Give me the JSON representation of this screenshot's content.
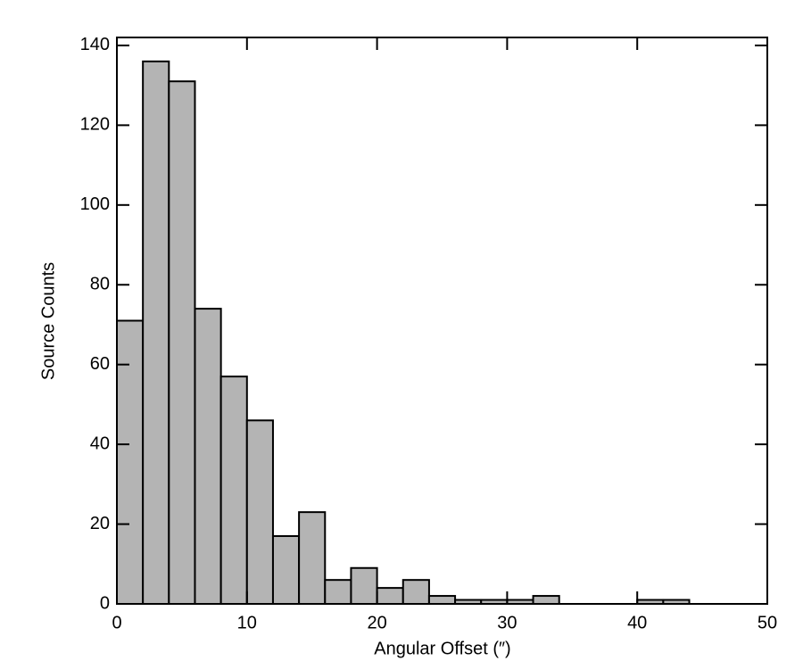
{
  "chart_data": {
    "type": "histogram",
    "xlabel": "Angular Offset (″)",
    "ylabel": "Source Counts",
    "bins": [
      0,
      2,
      4,
      6,
      8,
      10,
      12,
      14,
      16,
      18,
      20,
      22,
      24,
      26,
      28,
      30,
      32,
      34,
      36,
      38,
      40,
      42,
      44
    ],
    "counts": [
      71,
      136,
      131,
      74,
      57,
      46,
      17,
      23,
      6,
      9,
      4,
      6,
      2,
      1,
      1,
      1,
      2,
      0,
      0,
      0,
      1,
      1
    ],
    "color": "#b4b4b4",
    "xlim": [
      0,
      50
    ],
    "xticks": [
      0,
      10,
      20,
      30,
      40,
      50
    ],
    "ylim": [
      0,
      142
    ],
    "yticks": [
      0,
      20,
      40,
      60,
      80,
      100,
      120,
      140
    ]
  }
}
